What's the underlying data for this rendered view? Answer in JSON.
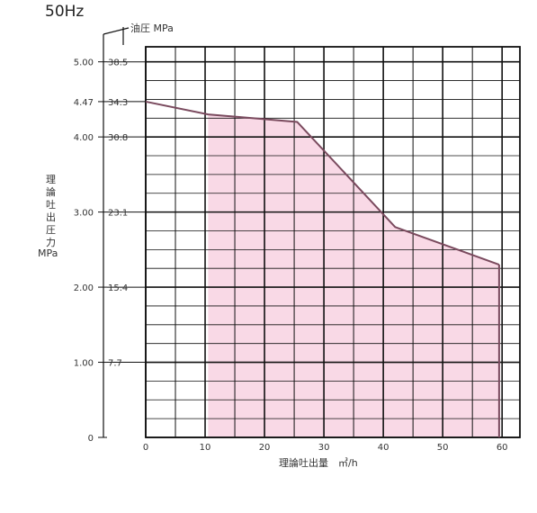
{
  "chart_data": {
    "type": "area",
    "title": "50Hz",
    "right_axis_label": "油圧 MPa",
    "ylabel_chars": [
      "理",
      "論",
      "吐",
      "出",
      "圧",
      "力"
    ],
    "ylabel_unit": "MPa",
    "xlabel": "理論吐出量　㎥/h",
    "xlim": [
      0,
      63
    ],
    "ylim": [
      0,
      5.2
    ],
    "x_ticks": [
      0,
      10,
      20,
      30,
      40,
      50,
      60
    ],
    "x_tick_labels": [
      "0",
      "10",
      "20",
      "30",
      "40",
      "50",
      "60"
    ],
    "y_ticks": [
      {
        "value": 0,
        "label_left": "0",
        "label_right": ""
      },
      {
        "value": 1.0,
        "label_left": "1.00",
        "label_right": "7.7"
      },
      {
        "value": 2.0,
        "label_left": "2.00",
        "label_right": "15.4"
      },
      {
        "value": 3.0,
        "label_left": "3.00",
        "label_right": "23.1"
      },
      {
        "value": 4.0,
        "label_left": "4.00",
        "label_right": "30.8"
      },
      {
        "value": 4.47,
        "label_left": "4.47",
        "label_right": "34.3"
      },
      {
        "value": 5.0,
        "label_left": "5.00",
        "label_right": "38.5"
      }
    ],
    "series": [
      {
        "x": [
          0,
          10.5,
          25.5,
          42,
          59.5
        ],
        "y": [
          4.47,
          4.3,
          4.2,
          2.8,
          2.3
        ]
      }
    ],
    "shaded_region": {
      "x_from": 10.5,
      "x_to": 59.5
    },
    "grid": true,
    "colors": {
      "line": "#7a4a5e",
      "fill": "#f9d9e6",
      "grid": "#111111"
    }
  }
}
